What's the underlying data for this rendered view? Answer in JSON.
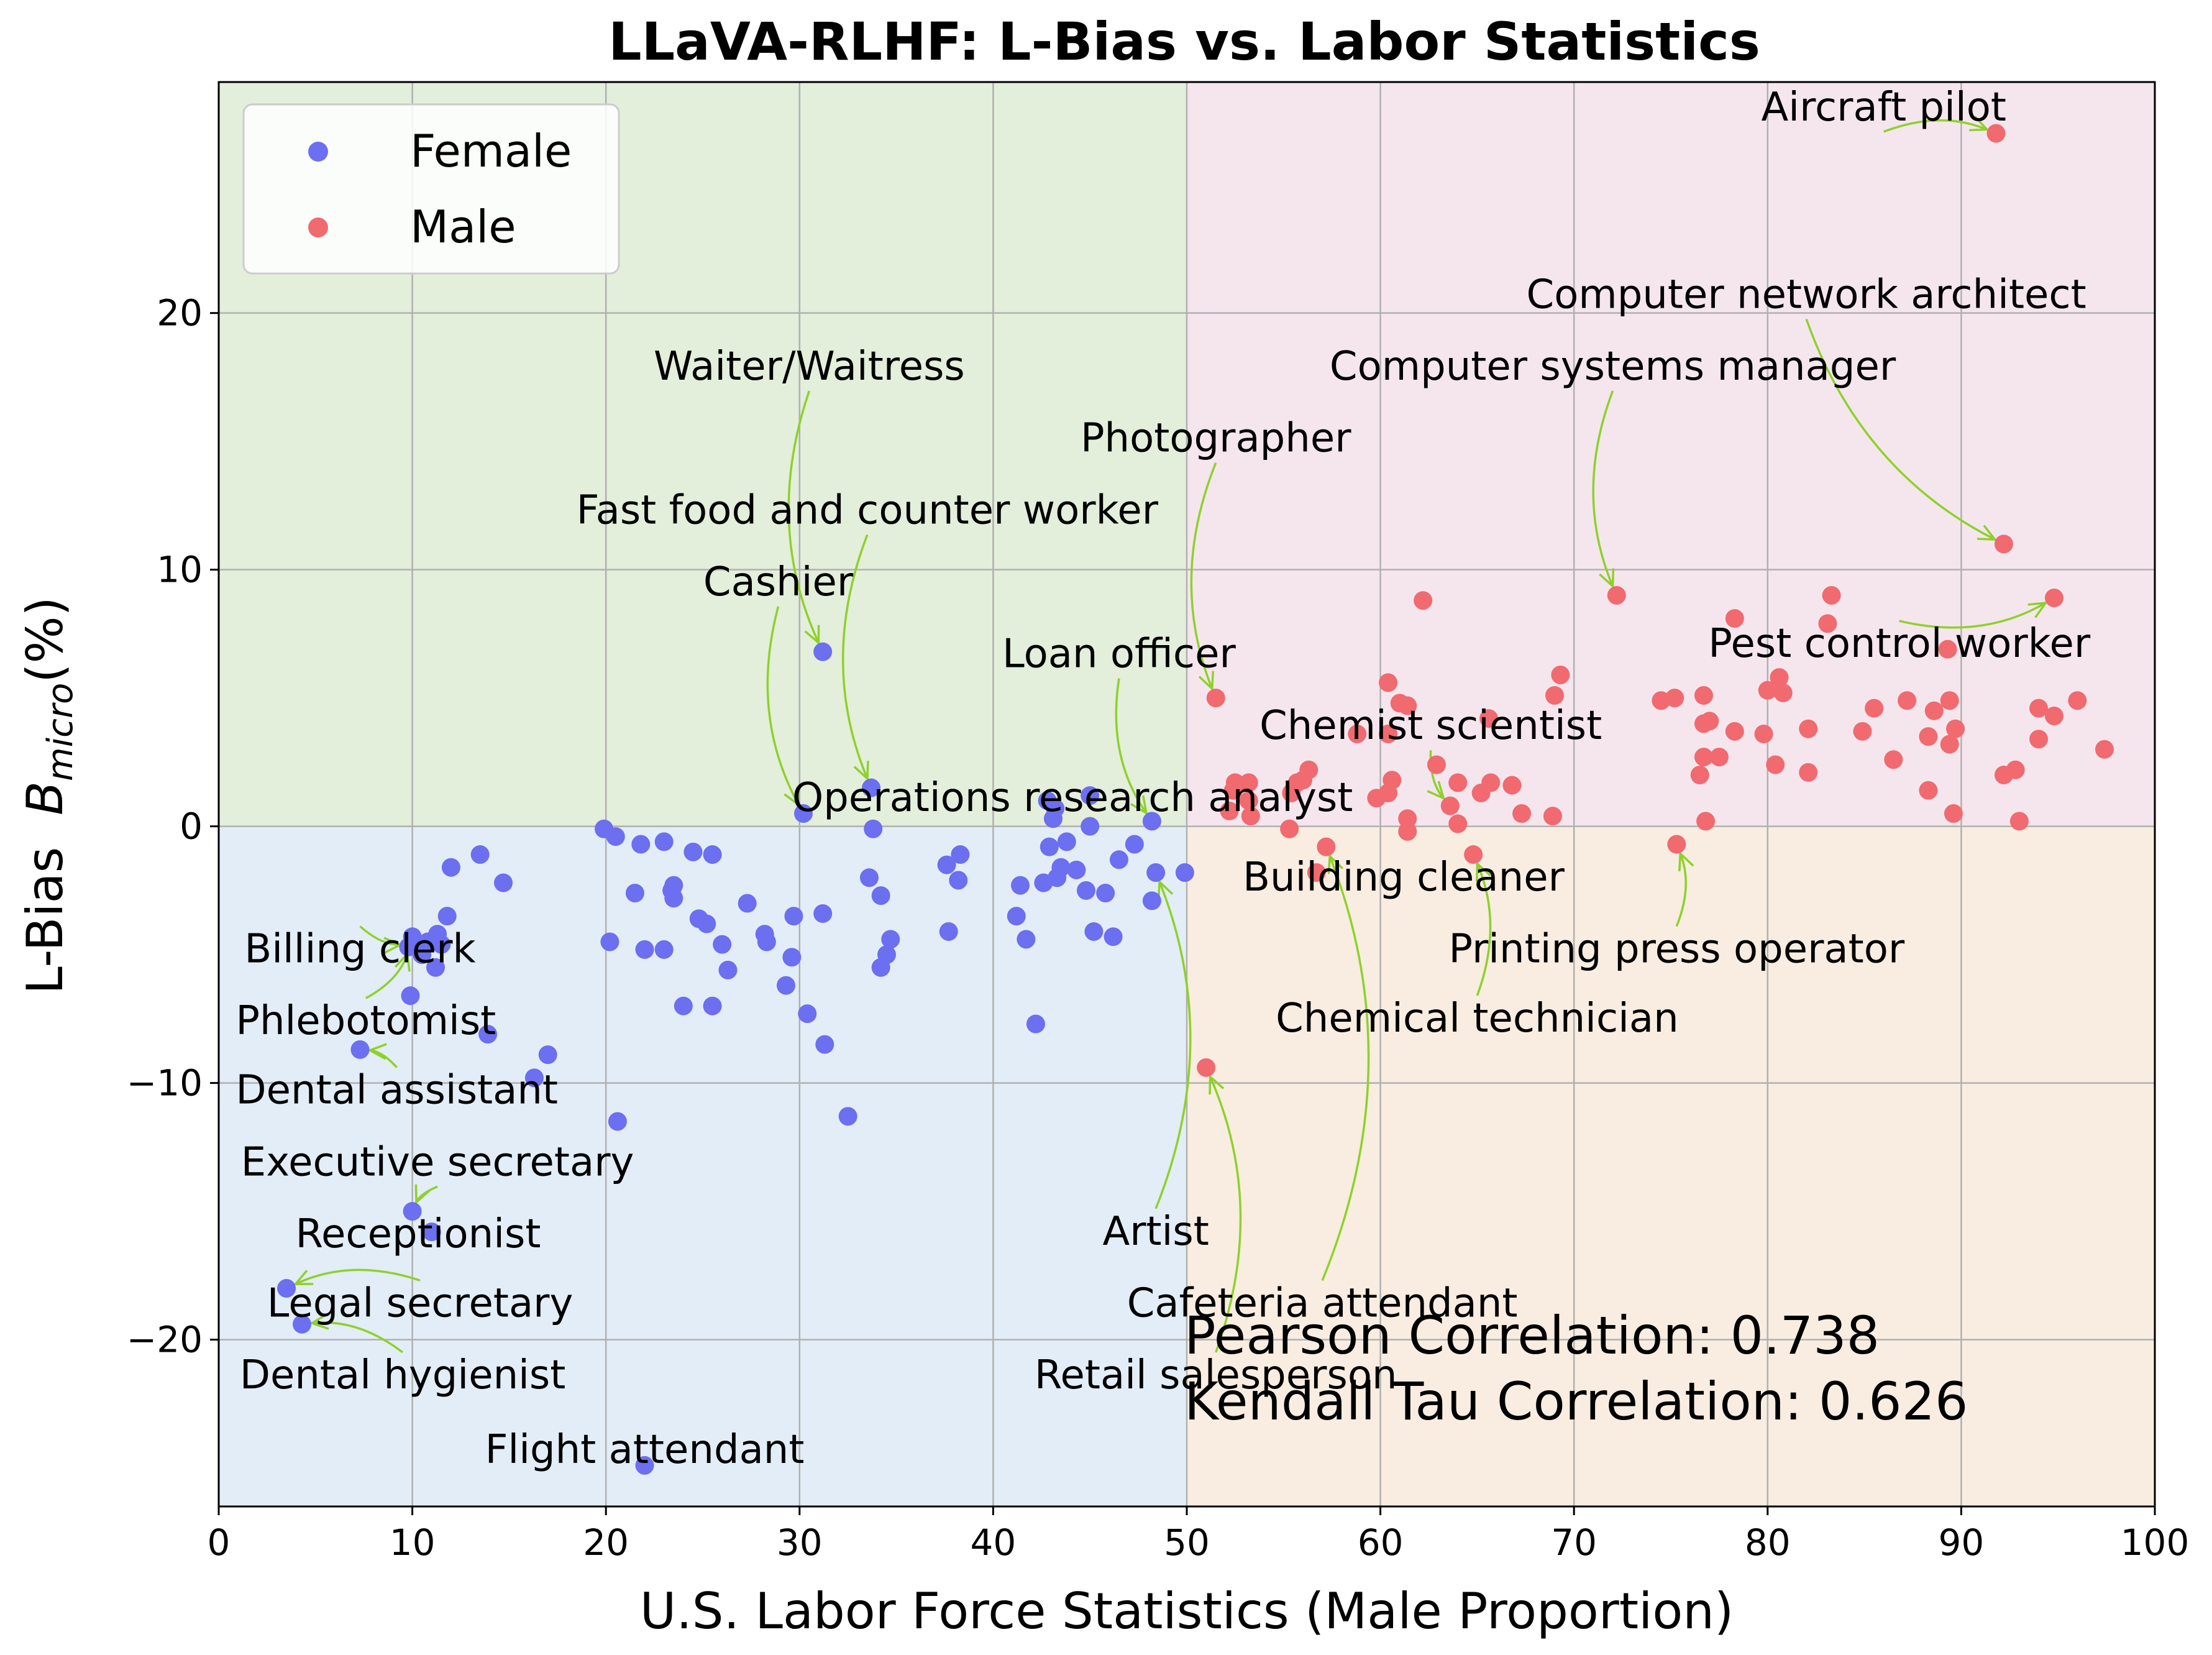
{
  "chart_data": {
    "type": "scatter",
    "title": "LLaVA-RLHF: L-Bias vs. Labor Statistics",
    "xlabel": "U.S. Labor Force Statistics (Male Proportion)",
    "ylabel_prefix": "L-Bias  ",
    "ylabel_symbol": "B",
    "ylabel_subscript": "micro",
    "ylabel_suffix": "(%)",
    "xlim": [
      0,
      100
    ],
    "ylim": [
      -26.5,
      29
    ],
    "xticks": [
      0,
      10,
      20,
      30,
      40,
      50,
      60,
      70,
      80,
      90,
      100
    ],
    "yticks": [
      -20,
      -10,
      0,
      10,
      20
    ],
    "ytick_labels": [
      "−20",
      "−10",
      "0",
      "10",
      "20"
    ],
    "grid": true,
    "legend_position": "top-left",
    "quadrants": [
      {
        "x": [
          0,
          50
        ],
        "y": [
          0,
          29
        ],
        "color": "#e3eedb"
      },
      {
        "x": [
          50,
          100
        ],
        "y": [
          0,
          29
        ],
        "color": "#f5e6ee"
      },
      {
        "x": [
          0,
          50
        ],
        "y": [
          -26.5,
          0
        ],
        "color": "#e2edf7"
      },
      {
        "x": [
          50,
          100
        ],
        "y": [
          -26.5,
          0
        ],
        "color": "#f8ede0"
      }
    ],
    "series": [
      {
        "name": "Female",
        "color": "#6b6ff0",
        "points": [
          [
            31.2,
            6.8
          ],
          [
            33.7,
            1.5
          ],
          [
            30.2,
            0.5
          ],
          [
            33.8,
            -0.1
          ],
          [
            45.0,
            1.2
          ],
          [
            45.0,
            0.0
          ],
          [
            48.2,
            0.2
          ],
          [
            19.9,
            -0.1
          ],
          [
            20.5,
            -0.4
          ],
          [
            21.8,
            -0.7
          ],
          [
            23.0,
            -0.6
          ],
          [
            24.5,
            -1.0
          ],
          [
            25.5,
            -1.1
          ],
          [
            12.0,
            -1.6
          ],
          [
            13.5,
            -1.1
          ],
          [
            14.7,
            -2.2
          ],
          [
            11.8,
            -3.5
          ],
          [
            11.3,
            -4.2
          ],
          [
            10.8,
            -4.5
          ],
          [
            11.5,
            -4.6
          ],
          [
            10.0,
            -4.3
          ],
          [
            9.8,
            -4.7
          ],
          [
            10.5,
            -5.0
          ],
          [
            11.2,
            -5.5
          ],
          [
            9.9,
            -6.6
          ],
          [
            13.9,
            -8.1
          ],
          [
            17.0,
            -8.9
          ],
          [
            16.3,
            -9.8
          ],
          [
            7.3,
            -8.7
          ],
          [
            10.0,
            -15.0
          ],
          [
            11.0,
            -15.8
          ],
          [
            3.5,
            -18.0
          ],
          [
            4.3,
            -19.4
          ],
          [
            22.0,
            -24.9
          ],
          [
            20.6,
            -11.5
          ],
          [
            32.5,
            -11.3
          ],
          [
            20.2,
            -4.5
          ],
          [
            21.5,
            -2.6
          ],
          [
            22.0,
            -4.8
          ],
          [
            23.0,
            -4.8
          ],
          [
            23.5,
            -2.3
          ],
          [
            23.5,
            -2.8
          ],
          [
            24.0,
            -7.0
          ],
          [
            24.8,
            -3.6
          ],
          [
            25.2,
            -3.8
          ],
          [
            25.5,
            -7.0
          ],
          [
            26.0,
            -4.6
          ],
          [
            26.3,
            -5.6
          ],
          [
            27.3,
            -3.0
          ],
          [
            28.2,
            -4.2
          ],
          [
            28.3,
            -4.5
          ],
          [
            29.3,
            -6.2
          ],
          [
            29.6,
            -5.1
          ],
          [
            29.7,
            -3.5
          ],
          [
            30.4,
            -7.3
          ],
          [
            31.2,
            -3.4
          ],
          [
            31.3,
            -8.5
          ],
          [
            33.6,
            -2.0
          ],
          [
            34.2,
            -2.7
          ],
          [
            34.2,
            -5.5
          ],
          [
            34.5,
            -5.0
          ],
          [
            34.7,
            -4.4
          ],
          [
            37.6,
            -1.5
          ],
          [
            37.7,
            -4.1
          ],
          [
            38.2,
            -2.1
          ],
          [
            38.3,
            -1.1
          ],
          [
            41.2,
            -3.5
          ],
          [
            41.4,
            -2.3
          ],
          [
            41.7,
            -4.4
          ],
          [
            42.2,
            -7.7
          ],
          [
            42.6,
            -2.2
          ],
          [
            42.9,
            -0.8
          ],
          [
            43.1,
            0.3
          ],
          [
            43.2,
            0.7
          ],
          [
            43.3,
            -2.0
          ],
          [
            43.5,
            -1.6
          ],
          [
            43.8,
            -0.6
          ],
          [
            44.3,
            -1.7
          ],
          [
            44.8,
            -2.5
          ],
          [
            45.2,
            -4.1
          ],
          [
            45.8,
            -2.6
          ],
          [
            46.2,
            -4.3
          ],
          [
            46.5,
            -1.3
          ],
          [
            47.3,
            -0.7
          ],
          [
            48.2,
            -2.9
          ],
          [
            48.4,
            -1.8
          ],
          [
            49.9,
            -1.8
          ],
          [
            23.4,
            -2.5
          ],
          [
            42.8,
            1.0
          ]
        ]
      },
      {
        "name": "Male",
        "color": "#f06a70",
        "points": [
          [
            91.8,
            27.0
          ],
          [
            92.2,
            11.0
          ],
          [
            72.2,
            9.0
          ],
          [
            51.5,
            5.0
          ],
          [
            94.8,
            8.9
          ],
          [
            62.2,
            8.8
          ],
          [
            83.3,
            9.0
          ],
          [
            78.3,
            8.1
          ],
          [
            83.1,
            7.9
          ],
          [
            89.3,
            6.9
          ],
          [
            69.3,
            5.9
          ],
          [
            61.0,
            4.8
          ],
          [
            60.4,
            5.6
          ],
          [
            60.4,
            3.6
          ],
          [
            58.8,
            3.6
          ],
          [
            61.4,
            4.7
          ],
          [
            65.6,
            4.2
          ],
          [
            69.0,
            5.1
          ],
          [
            74.5,
            4.9
          ],
          [
            75.2,
            5.0
          ],
          [
            76.7,
            5.1
          ],
          [
            77.0,
            4.1
          ],
          [
            76.7,
            4.0
          ],
          [
            78.3,
            3.7
          ],
          [
            79.8,
            3.6
          ],
          [
            80.0,
            5.3
          ],
          [
            80.6,
            5.8
          ],
          [
            80.8,
            5.2
          ],
          [
            82.1,
            3.8
          ],
          [
            84.9,
            3.7
          ],
          [
            85.5,
            4.6
          ],
          [
            87.2,
            4.9
          ],
          [
            88.3,
            3.5
          ],
          [
            88.6,
            4.5
          ],
          [
            89.4,
            4.9
          ],
          [
            89.7,
            3.8
          ],
          [
            89.4,
            3.2
          ],
          [
            89.6,
            0.5
          ],
          [
            92.2,
            2.0
          ],
          [
            92.8,
            2.2
          ],
          [
            93.0,
            0.2
          ],
          [
            94.0,
            4.6
          ],
          [
            94.0,
            3.4
          ],
          [
            94.8,
            4.3
          ],
          [
            96.0,
            4.9
          ],
          [
            97.4,
            3.0
          ],
          [
            88.3,
            1.4
          ],
          [
            86.5,
            2.6
          ],
          [
            82.1,
            2.1
          ],
          [
            80.4,
            2.4
          ],
          [
            77.5,
            2.7
          ],
          [
            76.7,
            2.7
          ],
          [
            76.5,
            2.0
          ],
          [
            76.8,
            0.2
          ],
          [
            75.3,
            -0.7
          ],
          [
            68.9,
            0.4
          ],
          [
            67.3,
            0.5
          ],
          [
            66.8,
            1.6
          ],
          [
            65.7,
            1.7
          ],
          [
            65.2,
            1.3
          ],
          [
            64.8,
            -1.1
          ],
          [
            64.0,
            1.7
          ],
          [
            64.0,
            0.1
          ],
          [
            63.6,
            0.8
          ],
          [
            62.9,
            2.4
          ],
          [
            61.4,
            0.3
          ],
          [
            61.4,
            -0.2
          ],
          [
            60.6,
            1.8
          ],
          [
            60.4,
            1.3
          ],
          [
            59.8,
            1.1
          ],
          [
            57.2,
            -0.8
          ],
          [
            56.7,
            -1.8
          ],
          [
            56.3,
            2.2
          ],
          [
            56.0,
            1.8
          ],
          [
            55.7,
            1.7
          ],
          [
            55.4,
            1.3
          ],
          [
            55.3,
            -0.1
          ],
          [
            53.2,
            1.7
          ],
          [
            53.2,
            1.0
          ],
          [
            53.3,
            0.4
          ],
          [
            52.5,
            1.7
          ],
          [
            52.2,
            0.6
          ],
          [
            52.4,
            1.4
          ],
          [
            51.0,
            -9.4
          ]
        ]
      }
    ],
    "annotations": [
      {
        "text": "Aircraft pilot",
        "pos": [
          86,
          27.5
        ],
        "target": [
          91.8,
          27.0
        ],
        "curve": -0.2
      },
      {
        "text": "Computer network architect",
        "pos": [
          82,
          20.2
        ],
        "target": [
          92.2,
          11.0
        ],
        "curve": 0.2
      },
      {
        "text": "Computer systems manager",
        "pos": [
          72,
          17.4
        ],
        "target": [
          72.2,
          9.0
        ],
        "curve": 0.2
      },
      {
        "text": "Photographer",
        "pos": [
          51.5,
          14.6
        ],
        "target": [
          51.5,
          5.0
        ],
        "curve": 0.2
      },
      {
        "text": "Waiter/Waitress",
        "pos": [
          30.5,
          17.4
        ],
        "target": [
          31.2,
          6.8
        ],
        "curve": 0.2
      },
      {
        "text": "Fast food and counter worker",
        "pos": [
          33.5,
          11.8
        ],
        "target": [
          33.7,
          1.5
        ],
        "curve": 0.2
      },
      {
        "text": "Cashier",
        "pos": [
          28.9,
          9.0
        ],
        "target": [
          30.2,
          0.5
        ],
        "curve": 0.2
      },
      {
        "text": "Loan officer",
        "pos": [
          46.5,
          6.2
        ],
        "target": [
          48.2,
          0.2
        ],
        "curve": 0.2
      },
      {
        "text": "Pest control worker",
        "pos": [
          86.8,
          6.6
        ],
        "target": [
          94.8,
          8.9
        ],
        "curve": 0.2
      },
      {
        "text": "Chemist scientist",
        "pos": [
          62.6,
          3.4
        ],
        "target": [
          63.6,
          0.8
        ],
        "curve": 0.2
      },
      {
        "text": "Operations research analyst",
        "pos": [
          44.1,
          0.6
        ],
        "target": [
          45.0,
          0.0
        ],
        "curve": 0.2
      },
      {
        "text": "Building cleaner",
        "pos": [
          61.2,
          -2.5
        ],
        "target": [
          61.4,
          -0.2
        ],
        "curve": 0.2
      },
      {
        "text": "Printing press operator",
        "pos": [
          75.3,
          -5.3
        ],
        "target": [
          75.3,
          -0.7
        ],
        "curve": 0.2
      },
      {
        "text": "Chemical technician",
        "pos": [
          65.0,
          -8.0
        ],
        "target": [
          64.8,
          -1.1
        ],
        "curve": 0.2
      },
      {
        "text": "Artist",
        "pos": [
          48.4,
          -16.3
        ],
        "target": [
          48.4,
          -1.8
        ],
        "curve": 0.2
      },
      {
        "text": "Cafeteria attendant",
        "pos": [
          57.0,
          -19.1
        ],
        "target": [
          57.2,
          -0.8
        ],
        "curve": 0.2
      },
      {
        "text": "Retail salesperson",
        "pos": [
          51.5,
          -21.9
        ],
        "target": [
          51.0,
          -9.4
        ],
        "curve": 0.2
      },
      {
        "text": "Billing clerk",
        "pos": [
          7.3,
          -5.3
        ],
        "target": [
          9.9,
          -4.6
        ],
        "curve": 0.2
      },
      {
        "text": "Phlebotomist",
        "pos": [
          7.6,
          -8.1
        ],
        "target": [
          9.9,
          -4.6
        ],
        "curve": 0.2
      },
      {
        "text": "Dental assistant",
        "pos": [
          9.2,
          -10.8
        ],
        "target": [
          7.3,
          -8.7
        ],
        "curve": 0.2
      },
      {
        "text": "Executive secretary",
        "pos": [
          11.3,
          -13.6
        ],
        "target": [
          10.0,
          -15.0
        ],
        "curve": 0.2
      },
      {
        "text": "Receptionist",
        "pos": [
          10.3,
          -16.4
        ],
        "target": [
          10.0,
          -15.0
        ],
        "curve": 0.2
      },
      {
        "text": "Legal secretary",
        "pos": [
          10.4,
          -19.1
        ],
        "target": [
          3.5,
          -18.0
        ],
        "curve": 0.2
      },
      {
        "text": "Dental hygienist",
        "pos": [
          9.5,
          -21.9
        ],
        "target": [
          4.3,
          -19.4
        ],
        "curve": 0.2
      },
      {
        "text": "Flight attendant",
        "pos": [
          22.0,
          -24.8
        ],
        "target": [
          22.0,
          -24.9
        ],
        "curve": 0.2
      }
    ],
    "arrow_color": "#8ed12a",
    "correlation": {
      "pearson": "Pearson Correlation: 0.738",
      "kendall": "Kendall Tau Correlation: 0.626"
    }
  }
}
